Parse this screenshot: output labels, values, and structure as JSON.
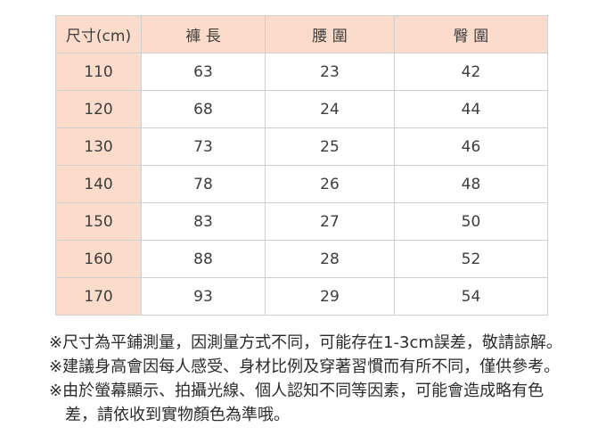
{
  "table": {
    "headers": [
      "尺寸(cm)",
      "褲 長",
      "腰 圍",
      "臀 圍"
    ],
    "rows": [
      [
        "110",
        "63",
        "23",
        "42"
      ],
      [
        "120",
        "68",
        "24",
        "44"
      ],
      [
        "130",
        "73",
        "25",
        "46"
      ],
      [
        "140",
        "78",
        "26",
        "48"
      ],
      [
        "150",
        "83",
        "27",
        "50"
      ],
      [
        "160",
        "88",
        "28",
        "52"
      ],
      [
        "170",
        "93",
        "29",
        "54"
      ]
    ]
  },
  "notes": [
    {
      "lines": [
        "※尺寸為平鋪測量，因測量方式不同，可能存在1-3cm誤差，敬請諒解。"
      ]
    },
    {
      "lines": [
        "※建議身高會因每人感受、身材比例及穿著習慣而有所不同，僅供參考。"
      ]
    },
    {
      "lines": [
        "※由於螢幕顯示、拍攝光線、個人認知不同等因素，可能會造成略有色",
        "差，請依收到實物顏色為準哦。"
      ]
    }
  ],
  "colors": {
    "header_bg": "#fbdccb",
    "border": "#cfcfcf",
    "cell_text": "#3d3d3d",
    "note_text": "#2b2b2b"
  }
}
